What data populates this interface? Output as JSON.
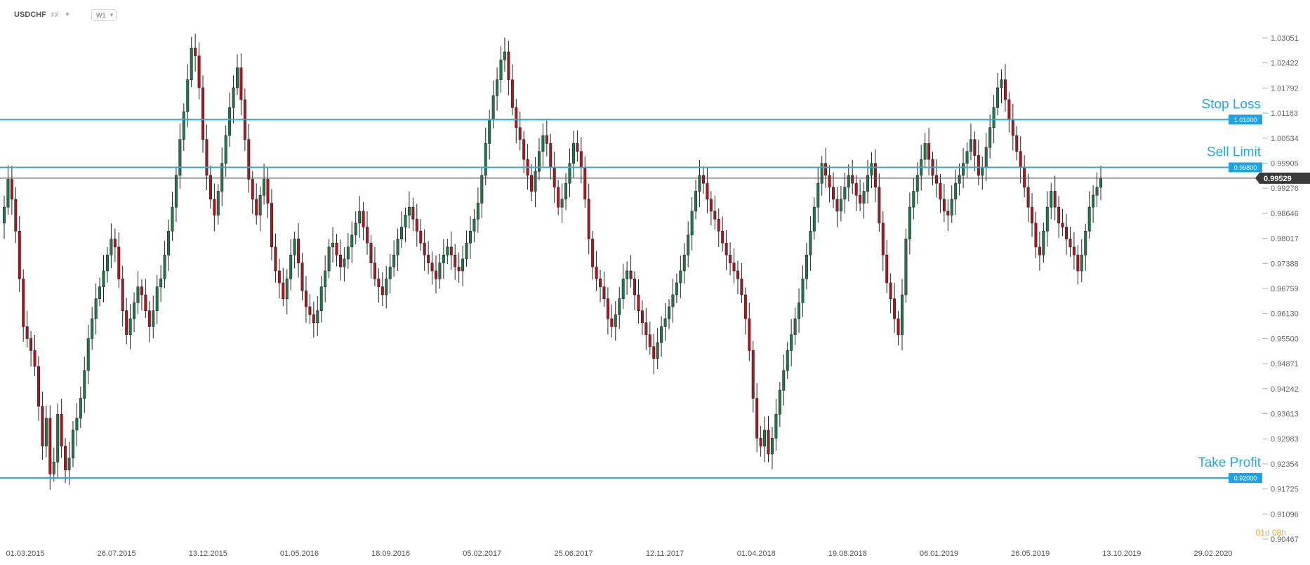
{
  "header": {
    "symbol": "USDCHF",
    "market": "FX",
    "timeframe": "W1"
  },
  "countdown": {
    "days": "01",
    "days_unit": "d",
    "hours": "08",
    "hours_unit": "h"
  },
  "colors": {
    "bull": "#1e7a4a",
    "bear": "#b3141b",
    "level_line": "#2aa7e6",
    "current_price_line": "#4d4d4d",
    "label_bg": "#1ea2e8",
    "current_label_bg": "#3a3a3a"
  },
  "chart_data": {
    "type": "candlestick",
    "title": "USDCHF",
    "ylim": [
      0.90467,
      1.03051
    ],
    "y_ticks": [
      "1.03051",
      "1.02422",
      "1.01792",
      "1.01163",
      "1.00534",
      "0.99905",
      "0.99276",
      "0.98646",
      "0.98017",
      "0.97388",
      "0.96759",
      "0.96130",
      "0.95500",
      "0.94871",
      "0.94242",
      "0.93613",
      "0.92983",
      "0.92354",
      "0.91725",
      "0.91096",
      "0.90467"
    ],
    "x_ticks": [
      "01.03.2015",
      "26.07.2015",
      "13.12.2015",
      "01.05.2016",
      "18.09.2016",
      "05.02.2017",
      "25.06.2017",
      "12.11.2017",
      "01.04.2018",
      "19.08.2018",
      "06.01.2019",
      "26.05.2019",
      "13.10.2019",
      "29.02.2020"
    ],
    "levels": [
      {
        "name": "Stop Loss",
        "price": 1.01,
        "label": "1.01000"
      },
      {
        "name": "Sell Limit",
        "price": 0.998,
        "label": "0.99800"
      },
      {
        "name": "Take Profit",
        "price": 0.92,
        "label": "0.92000"
      }
    ],
    "current_price": {
      "price": 0.99529,
      "label": "0.99529"
    },
    "close_series": [
      0.988,
      0.995,
      0.99,
      0.982,
      0.97,
      0.958,
      0.955,
      0.952,
      0.948,
      0.938,
      0.928,
      0.935,
      0.921,
      0.924,
      0.936,
      0.928,
      0.922,
      0.925,
      0.932,
      0.935,
      0.94,
      0.947,
      0.955,
      0.96,
      0.965,
      0.968,
      0.972,
      0.976,
      0.98,
      0.978,
      0.97,
      0.962,
      0.956,
      0.96,
      0.964,
      0.968,
      0.966,
      0.962,
      0.958,
      0.962,
      0.968,
      0.97,
      0.976,
      0.982,
      0.988,
      0.996,
      1.005,
      1.012,
      1.02,
      1.028,
      1.026,
      1.018,
      1.005,
      0.996,
      0.99,
      0.986,
      0.992,
      0.999,
      1.006,
      1.013,
      1.018,
      1.023,
      1.015,
      1.005,
      0.995,
      0.99,
      0.986,
      0.991,
      0.995,
      0.989,
      0.978,
      0.972,
      0.969,
      0.965,
      0.97,
      0.976,
      0.98,
      0.974,
      0.967,
      0.963,
      0.961,
      0.959,
      0.962,
      0.968,
      0.972,
      0.978,
      0.979,
      0.976,
      0.973,
      0.975,
      0.978,
      0.981,
      0.984,
      0.987,
      0.983,
      0.979,
      0.974,
      0.97,
      0.968,
      0.966,
      0.97,
      0.973,
      0.976,
      0.98,
      0.983,
      0.986,
      0.988,
      0.985,
      0.982,
      0.979,
      0.976,
      0.974,
      0.972,
      0.97,
      0.974,
      0.976,
      0.978,
      0.976,
      0.973,
      0.972,
      0.975,
      0.979,
      0.982,
      0.985,
      0.989,
      0.996,
      1.004,
      1.01,
      1.016,
      1.02,
      1.025,
      1.027,
      1.02,
      1.013,
      1.008,
      1.005,
      1.0,
      0.996,
      0.992,
      0.997,
      1.002,
      1.006,
      1.004,
      0.998,
      0.993,
      0.988,
      0.99,
      0.994,
      0.999,
      1.004,
      1.002,
      0.998,
      0.99,
      0.98,
      0.973,
      0.97,
      0.968,
      0.965,
      0.96,
      0.958,
      0.961,
      0.965,
      0.97,
      0.972,
      0.97,
      0.966,
      0.962,
      0.959,
      0.956,
      0.953,
      0.95,
      0.954,
      0.958,
      0.96,
      0.963,
      0.966,
      0.969,
      0.972,
      0.976,
      0.981,
      0.987,
      0.992,
      0.996,
      0.994,
      0.99,
      0.987,
      0.985,
      0.982,
      0.979,
      0.976,
      0.974,
      0.972,
      0.97,
      0.966,
      0.96,
      0.952,
      0.94,
      0.93,
      0.928,
      0.932,
      0.926,
      0.93,
      0.936,
      0.942,
      0.947,
      0.952,
      0.956,
      0.96,
      0.964,
      0.97,
      0.976,
      0.982,
      0.988,
      0.994,
      0.999,
      0.996,
      0.993,
      0.99,
      0.987,
      0.99,
      0.993,
      0.996,
      0.994,
      0.991,
      0.989,
      0.992,
      0.996,
      0.999,
      0.993,
      0.984,
      0.976,
      0.969,
      0.965,
      0.96,
      0.956,
      0.966,
      0.98,
      0.988,
      0.992,
      0.996,
      1.0,
      1.004,
      1.0,
      0.996,
      0.994,
      0.99,
      0.987,
      0.986,
      0.99,
      0.994,
      0.996,
      0.999,
      1.002,
      1.005,
      1.001,
      0.996,
      0.998,
      1.003,
      1.008,
      1.013,
      1.018,
      1.02,
      1.015,
      1.01,
      1.006,
      1.002,
      0.998,
      0.993,
      0.988,
      0.984,
      0.978,
      0.976,
      0.982,
      0.988,
      0.992,
      0.988,
      0.984,
      0.983,
      0.98,
      0.978,
      0.976,
      0.972,
      0.976,
      0.982,
      0.988,
      0.991,
      0.993,
      0.9953
    ]
  }
}
